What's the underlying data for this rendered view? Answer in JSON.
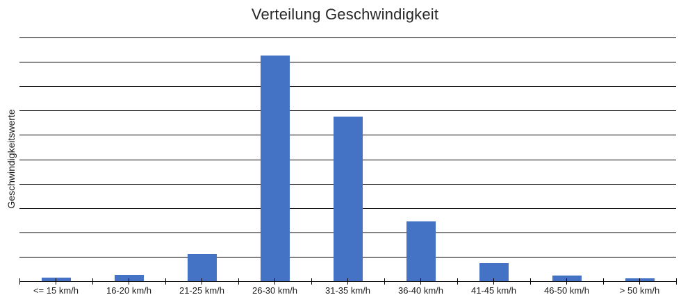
{
  "colors": {
    "bar": "#4472C4",
    "line": "#000000",
    "title_text": "#262626",
    "label_text": "#1a1a1a",
    "background": "#ffffff"
  },
  "chart_data": {
    "type": "bar",
    "title": "Verteilung Geschwindigkeit",
    "xlabel": "",
    "ylabel": "Geschwindigkeitswerte",
    "categories": [
      "<= 15 km/h",
      "16-20 km/h",
      "21-25 km/h",
      "26-30 km/h",
      "31-35 km/h",
      "36-40 km/h",
      "41-45 km/h",
      "46-50 km/h",
      "> 50 km/h"
    ],
    "values": [
      0.13,
      0.27,
      1.12,
      9.25,
      6.75,
      2.45,
      0.75,
      0.24,
      0.12
    ],
    "ylim": [
      0,
      10
    ],
    "gridline_count": 10,
    "grid": true,
    "legend": false,
    "y_tick_labels_visible": false,
    "bar_color": "#4472C4",
    "note": "Y axis has no numeric tick labels; values estimated in units of one gridline interval (plot height spans 10 intervals). Axis ticks cross at category boundaries and centers."
  }
}
